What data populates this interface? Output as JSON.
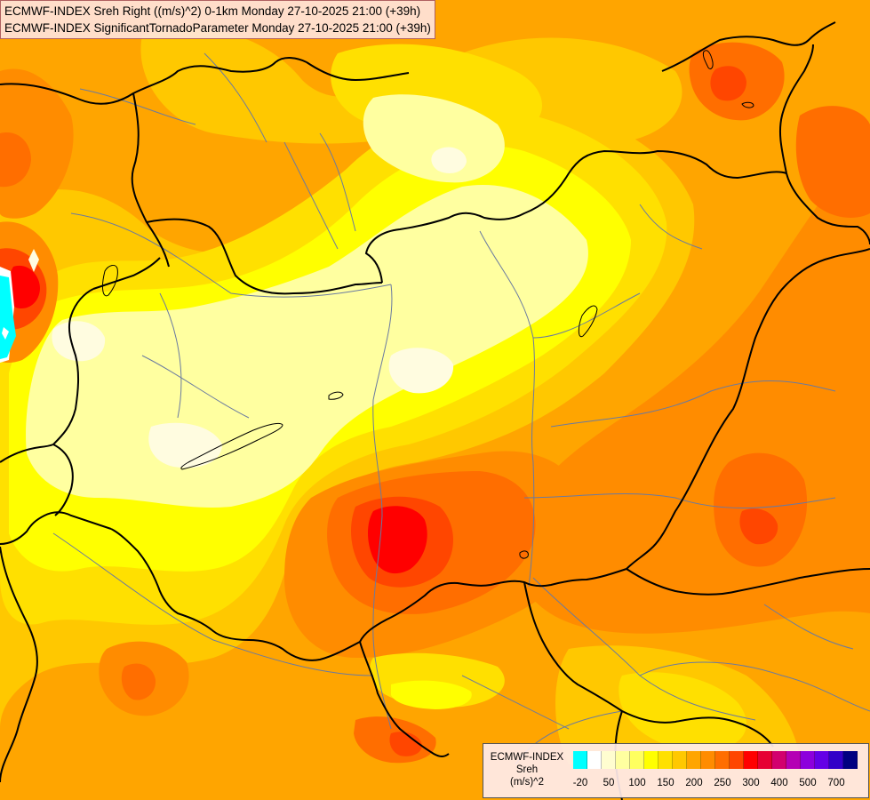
{
  "header": {
    "line1": "ECMWF-INDEX Sreh Right ((m/s)^2) 0-1km Monday 27-10-2025 21:00 (+39h)",
    "line2": "ECMWF-INDEX SignificantTornadoParameter Monday 27-10-2025 21:00 (+39h)"
  },
  "legend": {
    "source": "ECMWF-INDEX",
    "variable": "Sreh",
    "unit": "(m/s)^2",
    "colors": [
      "#00ffff",
      "#ffffff",
      "#fffdd0",
      "#ffffa0",
      "#ffff60",
      "#ffff00",
      "#ffe000",
      "#ffc800",
      "#ffa500",
      "#ff8c00",
      "#ff6e00",
      "#ff4600",
      "#ff0000",
      "#e60032",
      "#d2006e",
      "#b400b4",
      "#8c00dc",
      "#6400e6",
      "#3200c8",
      "#000080"
    ],
    "ticks": [
      {
        "label": "-20",
        "index": 0
      },
      {
        "label": "50",
        "index": 2
      },
      {
        "label": "100",
        "index": 4
      },
      {
        "label": "150",
        "index": 6
      },
      {
        "label": "200",
        "index": 8
      },
      {
        "label": "250",
        "index": 10
      },
      {
        "label": "300",
        "index": 12
      },
      {
        "label": "400",
        "index": 14
      },
      {
        "label": "500",
        "index": 16
      },
      {
        "label": "700",
        "index": 18
      }
    ]
  },
  "field_colors": {
    "very_pale": "#fffce0",
    "pale_yellow": "#ffffa0",
    "yellow": "#ffff00",
    "gold": "#ffe000",
    "amber": "#ffc800",
    "orange": "#ffa500",
    "dark_orange": "#ff8c00",
    "red_orange": "#ff6e00",
    "orange_red": "#ff4600",
    "red": "#ff0000",
    "cyan": "#00ffff"
  }
}
